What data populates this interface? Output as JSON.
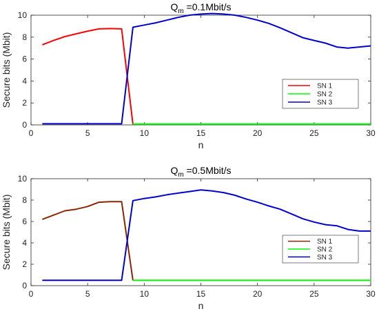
{
  "chart_data": [
    {
      "type": "line",
      "title_main": "Q",
      "title_sub": "m",
      "title_rest": " =0.1Mbit/s",
      "xlabel": "n",
      "ylabel": "Secure bits (Mbit)",
      "xlim": [
        0,
        30
      ],
      "ylim": [
        0,
        10
      ],
      "xticks": [
        "0",
        "5",
        "10",
        "15",
        "20",
        "25",
        "30"
      ],
      "yticks": [
        "0",
        "2",
        "4",
        "6",
        "8",
        "10"
      ],
      "grid": false,
      "legend": "center-right",
      "series": [
        {
          "name": "SN 1",
          "color": "#ff0000",
          "x": [
            1,
            2,
            3,
            4,
            5,
            6,
            7,
            8,
            9
          ],
          "y": [
            7.3,
            7.7,
            8.05,
            8.3,
            8.55,
            8.75,
            8.78,
            8.75,
            0.05
          ]
        },
        {
          "name": "SN 2",
          "color": "#00ff00",
          "x": [
            9,
            10,
            15,
            20,
            25,
            30
          ],
          "y": [
            0.08,
            0.08,
            0.08,
            0.08,
            0.08,
            0.08
          ]
        },
        {
          "name": "SN 3",
          "color": "#0000cc",
          "x": [
            1,
            2,
            3,
            4,
            5,
            6,
            7,
            8,
            9,
            10,
            11,
            12,
            13,
            14,
            15,
            16,
            17,
            18,
            19,
            20,
            21,
            22,
            23,
            24,
            25,
            26,
            27,
            28,
            29,
            30
          ],
          "y": [
            0.1,
            0.1,
            0.1,
            0.1,
            0.1,
            0.1,
            0.1,
            0.1,
            8.9,
            9.1,
            9.3,
            9.55,
            9.8,
            10.0,
            10.1,
            10.15,
            10.1,
            10.0,
            9.8,
            9.55,
            9.25,
            8.85,
            8.4,
            7.95,
            7.7,
            7.45,
            7.1,
            7.0,
            7.1,
            7.2
          ]
        }
      ]
    },
    {
      "type": "line",
      "title_main": "Q",
      "title_sub": "m",
      "title_rest": " =0.5Mbit/s",
      "xlabel": "n",
      "ylabel": "Secure bits (Mbit)",
      "xlim": [
        0,
        30
      ],
      "ylim": [
        0,
        10
      ],
      "xticks": [
        "0",
        "5",
        "10",
        "15",
        "20",
        "25",
        "30"
      ],
      "yticks": [
        "0",
        "2",
        "4",
        "6",
        "8",
        "10"
      ],
      "grid": false,
      "legend": "center-right",
      "series": [
        {
          "name": "SN 1",
          "color": "#8b2500",
          "x": [
            1,
            2,
            3,
            4,
            5,
            6,
            7,
            8,
            9
          ],
          "y": [
            6.2,
            6.6,
            7.0,
            7.15,
            7.4,
            7.8,
            7.85,
            7.85,
            0.5
          ]
        },
        {
          "name": "SN 2",
          "color": "#00ff00",
          "x": [
            9,
            10,
            15,
            20,
            25,
            30
          ],
          "y": [
            0.5,
            0.5,
            0.5,
            0.5,
            0.5,
            0.5
          ]
        },
        {
          "name": "SN 3",
          "color": "#0000cc",
          "x": [
            1,
            2,
            3,
            4,
            5,
            6,
            7,
            8,
            9,
            10,
            11,
            12,
            13,
            14,
            15,
            16,
            17,
            18,
            19,
            20,
            21,
            22,
            23,
            24,
            25,
            26,
            27,
            28,
            29,
            30
          ],
          "y": [
            0.5,
            0.5,
            0.5,
            0.5,
            0.5,
            0.5,
            0.5,
            0.5,
            7.95,
            8.15,
            8.3,
            8.5,
            8.65,
            8.8,
            8.95,
            8.85,
            8.7,
            8.45,
            8.1,
            7.8,
            7.45,
            7.15,
            6.7,
            6.25,
            5.95,
            5.7,
            5.6,
            5.25,
            5.1,
            5.1
          ]
        }
      ]
    }
  ]
}
